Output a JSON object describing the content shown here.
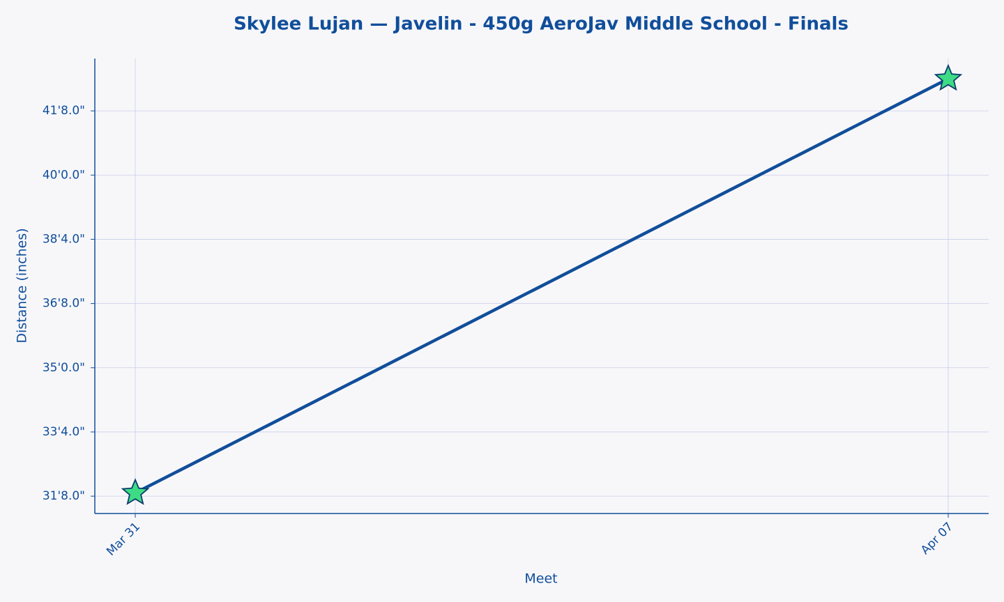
{
  "chart_data": {
    "type": "line",
    "title": "Skylee Lujan — Javelin - 450g AeroJav Middle School - Finals",
    "x_label": "Meet",
    "y_label": "Distance (inches)",
    "categories": [
      "Mar 31",
      "Apr 07"
    ],
    "values": [
      381,
      510
    ],
    "color": "#114e9a",
    "marker_color": "#3ddc84",
    "ylim": [
      374.6,
      516.3
    ],
    "yticks": [
      {
        "value": 380,
        "label": "31'8.0\""
      },
      {
        "value": 400,
        "label": "33'4.0\""
      },
      {
        "value": 420,
        "label": "35'0.0\""
      },
      {
        "value": 440,
        "label": "36'8.0\""
      },
      {
        "value": 460,
        "label": "38'4.0\""
      },
      {
        "value": 480,
        "label": "40'0.0\""
      },
      {
        "value": 500,
        "label": "41'8.0\""
      }
    ],
    "grid": true
  }
}
